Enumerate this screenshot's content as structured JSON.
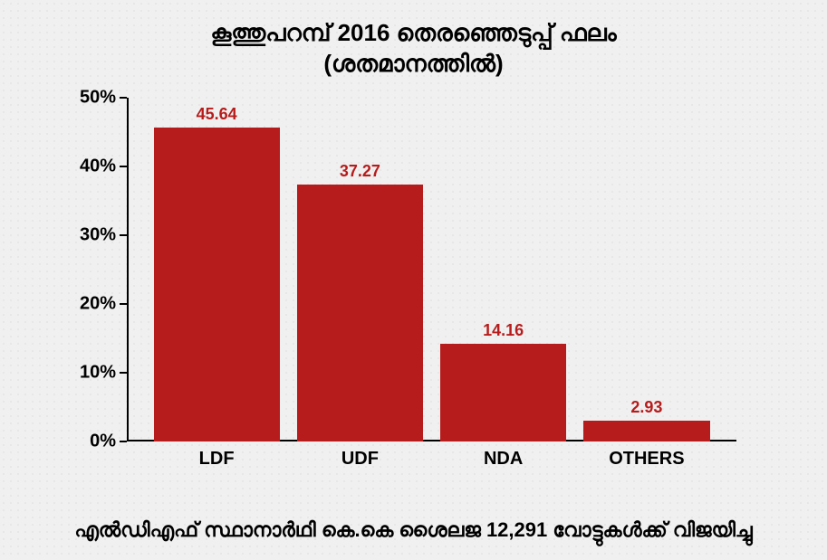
{
  "title_line1": "കൂത്തുപറമ്പ് 2016 തെരഞ്ഞെടുപ്പ് ഫലം",
  "title_line2": "(ശതമാനത്തിൽ)",
  "title_fontsize": 26,
  "chart": {
    "type": "bar",
    "categories": [
      "LDF",
      "UDF",
      "NDA",
      "OTHERS"
    ],
    "values": [
      45.64,
      37.27,
      14.16,
      2.93
    ],
    "bar_color": "#b71c1c",
    "value_label_color": "#b71c1c",
    "value_label_fontsize": 18,
    "ylim": [
      0,
      50
    ],
    "ytick_step": 10,
    "ytick_suffix": "%",
    "ytick_fontsize": 20,
    "xlabel_fontsize": 20,
    "axis_color": "#000000",
    "background": "transparent"
  },
  "footer_text": "എൽഡിഎഫ് സ്ഥാനാർഥി കെ.കെ ശൈലജ 12,291 വോട്ടുകൾക്ക് വിജയിച്ചു",
  "footer_fontsize": 22
}
